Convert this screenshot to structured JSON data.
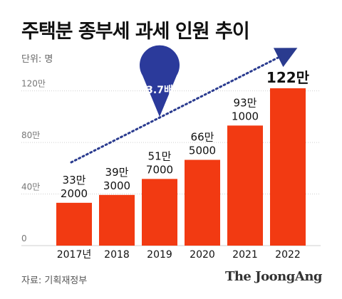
{
  "title": "주택분 종부세 과세 인원 추이",
  "unit": "단위: 명",
  "source": "자료: 기획재정부",
  "brand": "The JoongAng",
  "annotation": "3.7배",
  "colors": {
    "bar": "#f23a12",
    "arrow": "#2a3b8f",
    "badge": "#2b3a9b",
    "grid": "#cfcfcf",
    "axis_text": "#777777",
    "label": "#111111"
  },
  "chart_data": {
    "type": "bar",
    "title": "주택분 종부세 과세 인원 추이",
    "xlabel": "",
    "ylabel": "",
    "unit": "명",
    "categories": [
      "2017년",
      "2018",
      "2019",
      "2020",
      "2021",
      "2022"
    ],
    "values": [
      332000,
      393000,
      517000,
      665000,
      931000,
      1220000
    ],
    "data_labels": [
      [
        "33만",
        "2000"
      ],
      [
        "39만",
        "3000"
      ],
      [
        "51만",
        "7000"
      ],
      [
        "66만",
        "5000"
      ],
      [
        "93만",
        "1000"
      ],
      [
        "122만"
      ]
    ],
    "yticks": [
      0,
      400000,
      800000,
      1200000
    ],
    "ytick_labels": [
      "0",
      "40만",
      "80만",
      "120만"
    ],
    "ylim": [
      0,
      1220000
    ],
    "grid": true,
    "legend": "none"
  }
}
